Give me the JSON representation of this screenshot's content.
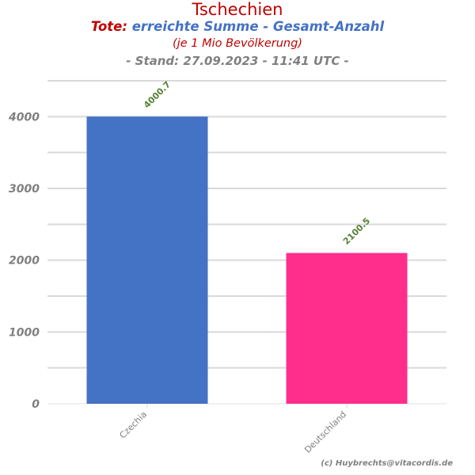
{
  "header": {
    "title": "Tschechien",
    "subtitle_prefix": "Tote:",
    "subtitle_main": " erreichte Summe - Gesamt-Anzahl",
    "subtitle2": "(je 1 Mio Bevölkerung)",
    "stand": "- Stand: 27.09.2023 - 11:41 UTC -"
  },
  "credit": "(c) Huybrechts@vitacordis.de",
  "chart_data": {
    "type": "bar",
    "categories": [
      "Czechia",
      "Deutschland"
    ],
    "values": [
      4000.7,
      2100.5
    ],
    "data_labels": [
      "4000.7",
      "2100.5"
    ],
    "colors": [
      "#4472c4",
      "#ff2e8c"
    ],
    "ylim": [
      0,
      4500
    ],
    "yticks": [
      0,
      1000,
      2000,
      3000,
      4000
    ],
    "grid": true,
    "legend": "none"
  }
}
